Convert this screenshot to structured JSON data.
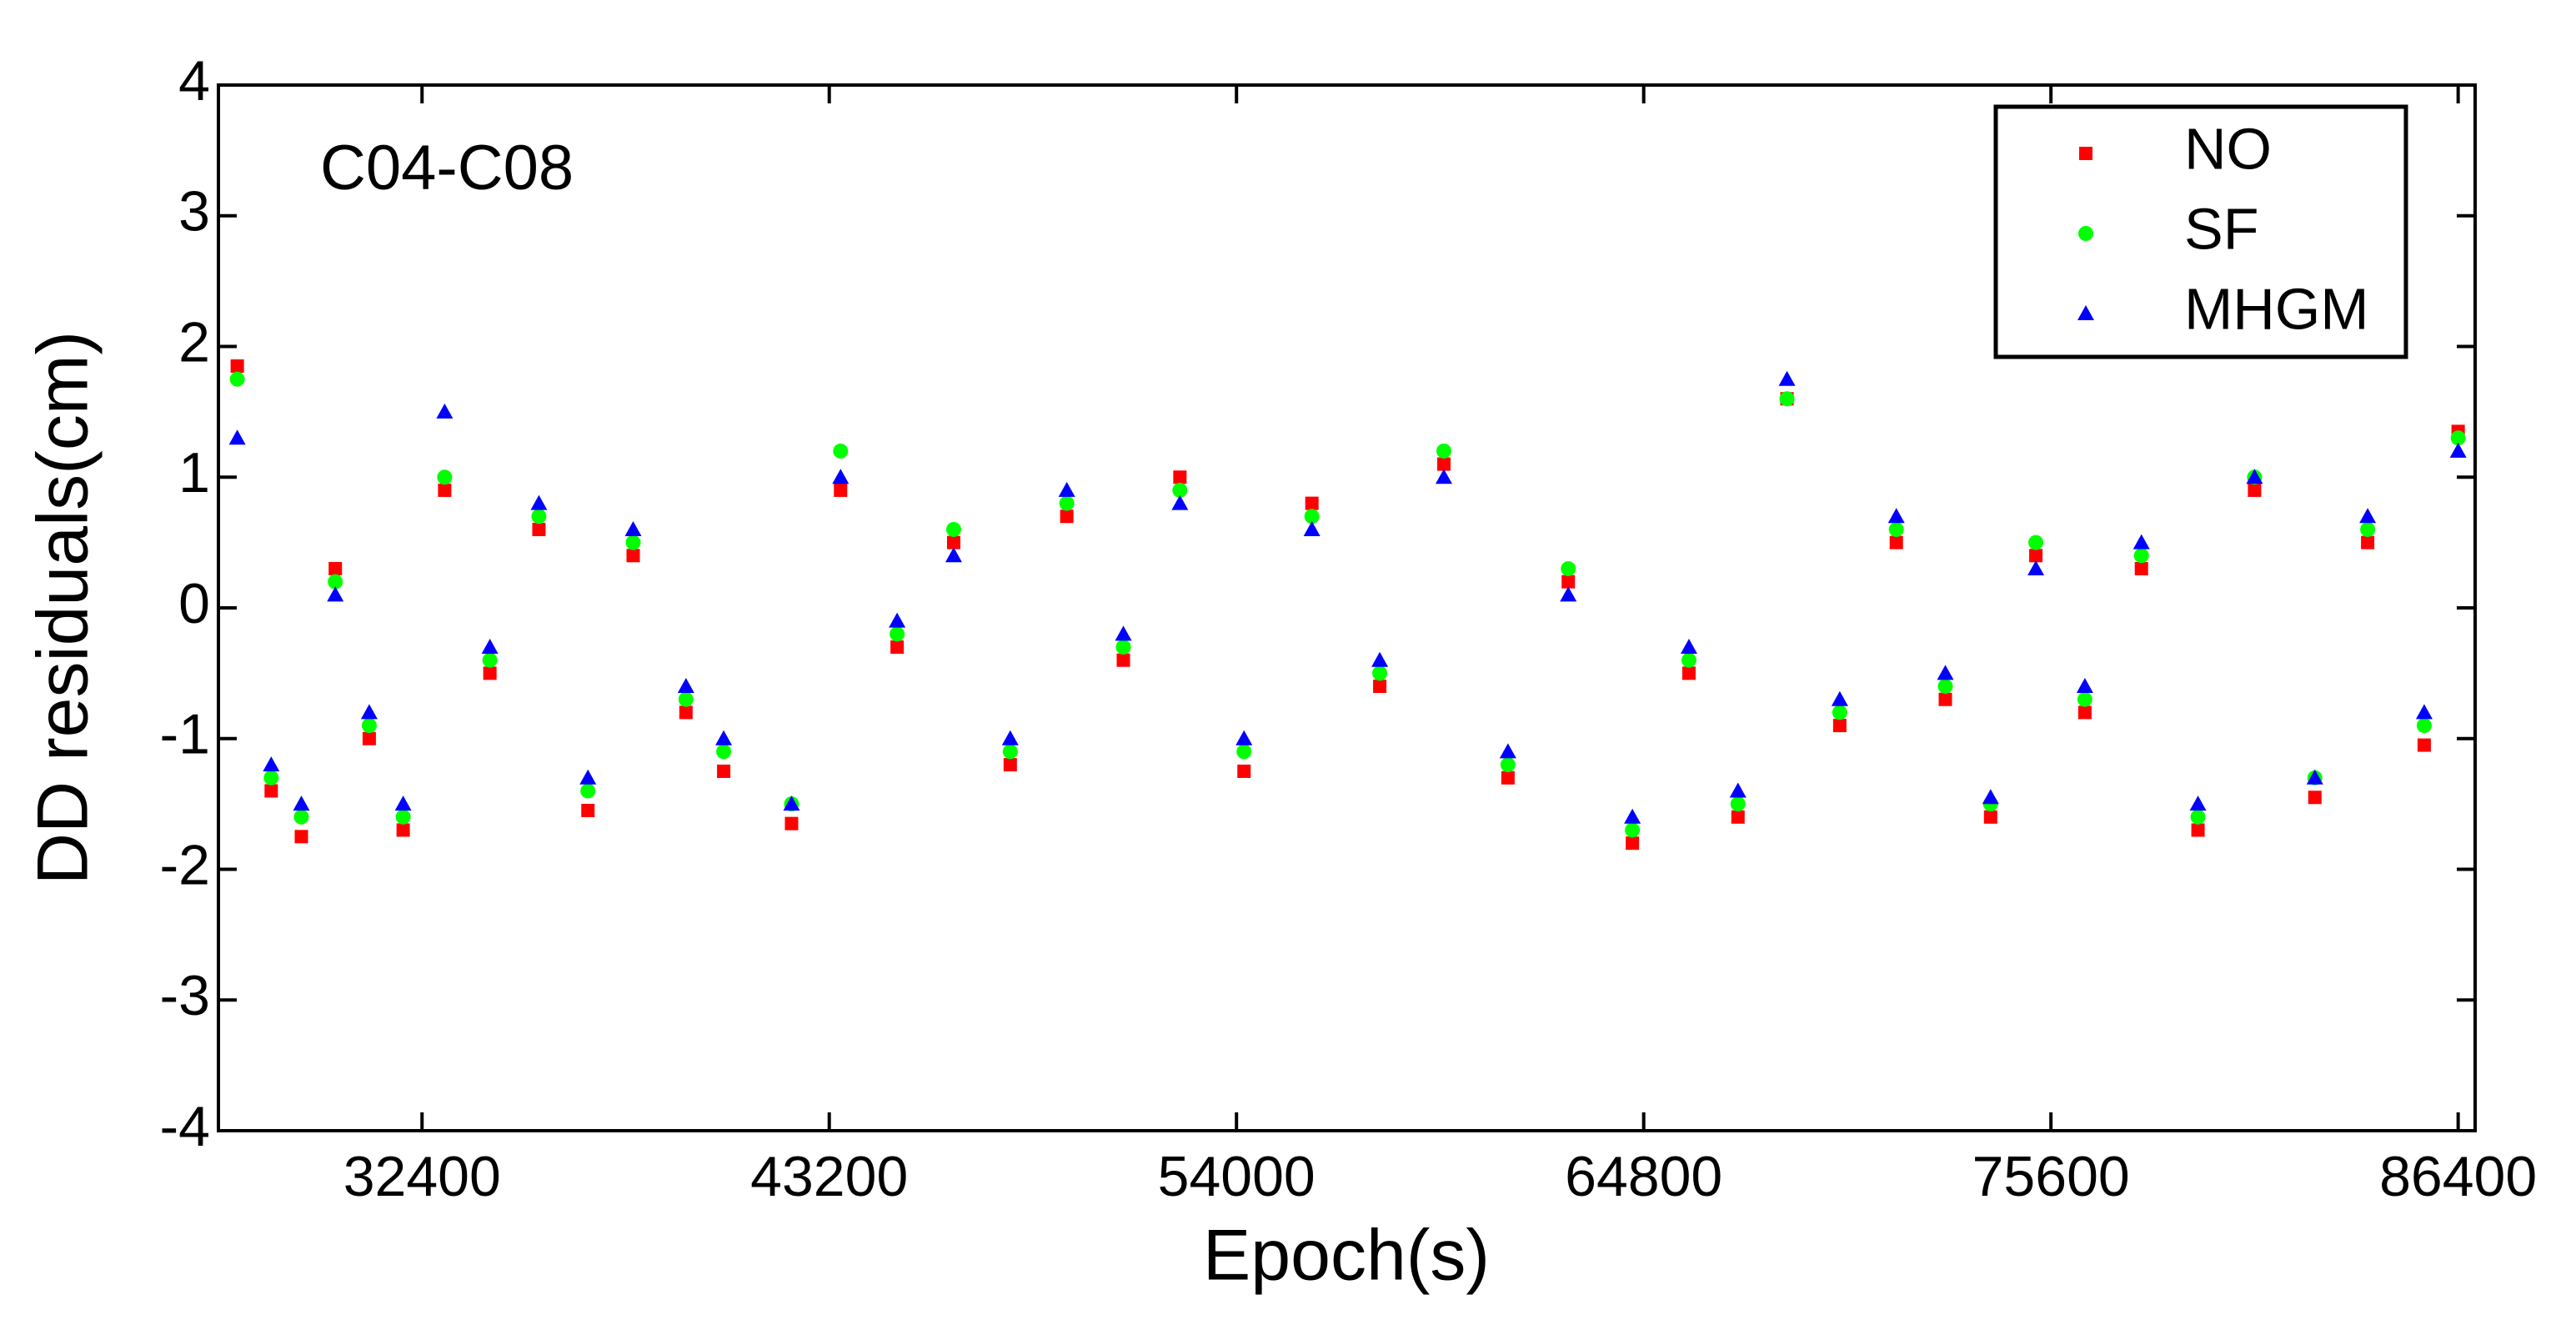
{
  "chart_data": {
    "type": "scatter",
    "annotation": "C04-C08",
    "xlabel": "Epoch(s)",
    "ylabel": "DD residuals(cm)",
    "xlim": [
      27000,
      86850
    ],
    "xticks": [
      32400,
      43200,
      54000,
      64800,
      75600,
      86400
    ],
    "ylim": [
      -4,
      4
    ],
    "yticks": [
      -4,
      -3,
      -2,
      -1,
      0,
      1,
      2,
      3,
      4
    ],
    "legend": "upper right",
    "x": [
      27500,
      28400,
      29200,
      30100,
      31000,
      31900,
      33000,
      34200,
      35500,
      36800,
      38000,
      39400,
      40400,
      42200,
      43500,
      45000,
      46500,
      48000,
      49500,
      51000,
      52500,
      54200,
      56000,
      57800,
      59500,
      61200,
      62800,
      64500,
      66000,
      67300,
      68600,
      70000,
      71500,
      72800,
      74000,
      75200,
      76500,
      78000,
      79500,
      81000,
      82600,
      84000,
      85500,
      86400
    ],
    "series": [
      {
        "name": "NO",
        "color": "#ff0000",
        "marker": "square",
        "values": [
          1.85,
          -1.4,
          -1.75,
          0.3,
          -1.0,
          -1.7,
          0.9,
          -0.5,
          0.6,
          -1.55,
          0.4,
          -0.8,
          -1.25,
          -1.65,
          0.9,
          -0.3,
          0.5,
          -1.2,
          0.7,
          -0.4,
          1.0,
          -1.25,
          0.8,
          -0.6,
          1.1,
          -1.3,
          0.2,
          -1.8,
          -0.5,
          -1.6,
          1.6,
          -0.9,
          0.5,
          -0.7,
          -1.6,
          0.4,
          -0.8,
          0.3,
          -1.7,
          0.9,
          -1.45,
          0.5,
          -1.05,
          1.35
        ]
      },
      {
        "name": "SF",
        "color": "#00ff00",
        "marker": "circle",
        "values": [
          1.75,
          -1.3,
          -1.6,
          0.2,
          -0.9,
          -1.6,
          1.0,
          -0.4,
          0.7,
          -1.4,
          0.5,
          -0.7,
          -1.1,
          -1.5,
          1.2,
          -0.2,
          0.6,
          -1.1,
          0.8,
          -0.3,
          0.9,
          -1.1,
          0.7,
          -0.5,
          1.2,
          -1.2,
          0.3,
          -1.7,
          -0.4,
          -1.5,
          1.6,
          -0.8,
          0.6,
          -0.6,
          -1.5,
          0.5,
          -0.7,
          0.4,
          -1.6,
          1.0,
          -1.3,
          0.6,
          -0.9,
          1.3
        ]
      },
      {
        "name": "MHGM",
        "color": "#0000ff",
        "marker": "triangle",
        "values": [
          1.3,
          -1.2,
          -1.5,
          0.1,
          -0.8,
          -1.5,
          1.5,
          -0.3,
          0.8,
          -1.3,
          0.6,
          -0.6,
          -1.0,
          -1.5,
          1.0,
          -0.1,
          0.4,
          -1.0,
          0.9,
          -0.2,
          0.8,
          -1.0,
          0.6,
          -0.4,
          1.0,
          -1.1,
          0.1,
          -1.6,
          -0.3,
          -1.4,
          1.75,
          -0.7,
          0.7,
          -0.5,
          -1.45,
          0.3,
          -0.6,
          0.5,
          -1.5,
          1.0,
          -1.3,
          0.7,
          -0.8,
          1.2
        ]
      }
    ]
  }
}
